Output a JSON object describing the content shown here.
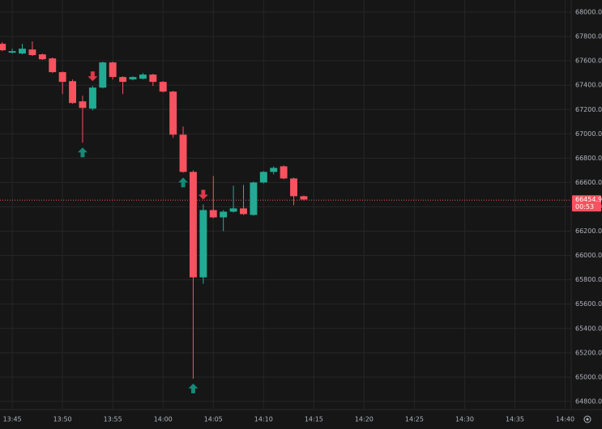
{
  "chart_data": {
    "type": "candlestick",
    "x": [
      "13:44",
      "13:45",
      "13:46",
      "13:47",
      "13:48",
      "13:49",
      "13:50",
      "13:51",
      "13:52",
      "13:53",
      "13:54",
      "13:55",
      "13:56",
      "13:57",
      "13:58",
      "13:59",
      "14:00",
      "14:01",
      "14:02",
      "14:03",
      "14:04",
      "14:05",
      "14:06",
      "14:07",
      "14:08",
      "14:09",
      "14:10",
      "14:11",
      "14:12",
      "14:13",
      "14:14"
    ],
    "open": [
      67740,
      67667,
      67660,
      67693,
      67653,
      67620,
      67507,
      67433,
      67267,
      67207,
      67380,
      67587,
      67467,
      67447,
      67453,
      67487,
      67427,
      67347,
      66993,
      66687,
      65820,
      66373,
      66313,
      66360,
      66387,
      66333,
      66600,
      66687,
      66733,
      66633,
      66487
    ],
    "high": [
      67753,
      67700,
      67740,
      67760,
      67660,
      67627,
      67513,
      67447,
      67313,
      67393,
      67593,
      67593,
      67473,
      67473,
      67500,
      67493,
      67433,
      67353,
      67060,
      66700,
      66420,
      66653,
      66373,
      66573,
      66580,
      66607,
      66693,
      66733,
      66740,
      66640,
      66493
    ],
    "low": [
      67680,
      67660,
      67653,
      67640,
      67607,
      67500,
      67327,
      67247,
      66927,
      67193,
      67373,
      67447,
      67327,
      67440,
      67447,
      67393,
      67340,
      66967,
      66680,
      64987,
      65767,
      66307,
      66200,
      66353,
      66333,
      66327,
      66593,
      66667,
      66627,
      66413,
      66453
    ],
    "close": [
      67687,
      67680,
      67700,
      67647,
      67613,
      67507,
      67427,
      67253,
      67213,
      67380,
      67587,
      67467,
      67427,
      67467,
      67487,
      67427,
      67347,
      66993,
      66687,
      65820,
      66373,
      66313,
      66360,
      66387,
      66340,
      66600,
      66687,
      66720,
      66633,
      66487,
      66460
    ],
    "up_color": "#22ab94",
    "down_color": "#f7525f",
    "markers": [
      {
        "x": "13:52",
        "direction": "up"
      },
      {
        "x": "13:53",
        "direction": "down"
      },
      {
        "x": "14:02",
        "direction": "up"
      },
      {
        "x": "14:03",
        "direction": "up"
      },
      {
        "x": "14:04",
        "direction": "down"
      }
    ],
    "xlim": [
      "13:43:47",
      "14:40:36"
    ],
    "xticks": [
      "13:45",
      "13:50",
      "13:55",
      "14:00",
      "14:05",
      "14:10",
      "14:15",
      "14:20",
      "14:25",
      "14:30",
      "14:35",
      "14:40"
    ],
    "ylim": [
      64733,
      68100
    ],
    "yticks": [
      {
        "value": 64800,
        "label": "64800.0"
      },
      {
        "value": 65000,
        "label": "65000.0"
      },
      {
        "value": 65200,
        "label": "65200.0"
      },
      {
        "value": 65400,
        "label": "65400.0"
      },
      {
        "value": 65600,
        "label": "65600.0"
      },
      {
        "value": 65800,
        "label": "65800.0"
      },
      {
        "value": 66000,
        "label": "66000.0"
      },
      {
        "value": 66200,
        "label": "66200.0"
      },
      {
        "value": 66400,
        "label": "66400.0"
      },
      {
        "value": 66600,
        "label": "66600.0"
      },
      {
        "value": 66800,
        "label": "66800.0"
      },
      {
        "value": 67000,
        "label": "67000.0"
      },
      {
        "value": 67200,
        "label": "67200.0"
      },
      {
        "value": 67400,
        "label": "67400.0"
      },
      {
        "value": 67600,
        "label": "67600.0"
      },
      {
        "value": 67800,
        "label": "67800.0"
      },
      {
        "value": 68000,
        "label": "68000.0"
      }
    ],
    "grid": true,
    "last_price": 66454.9,
    "countdown": "00:53"
  }
}
